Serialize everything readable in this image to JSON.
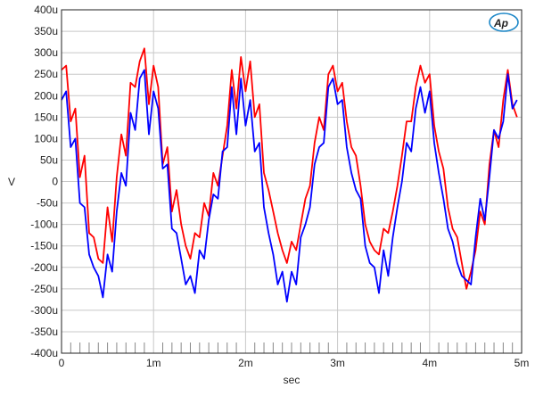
{
  "logo": {
    "text": "Ap",
    "color": "#1e88c8"
  },
  "chart_data": {
    "type": "line",
    "xlabel": "sec",
    "ylabel": "V",
    "xlim": [
      0,
      0.005
    ],
    "ylim": [
      -0.0004,
      0.0004
    ],
    "grid": true,
    "x_ticks": [
      {
        "value": 0,
        "label": "0"
      },
      {
        "value": 0.001,
        "label": "1m"
      },
      {
        "value": 0.002,
        "label": "2m"
      },
      {
        "value": 0.003,
        "label": "3m"
      },
      {
        "value": 0.004,
        "label": "4m"
      },
      {
        "value": 0.005,
        "label": "5m"
      }
    ],
    "y_ticks": [
      {
        "value": 0.0004,
        "label": "400u"
      },
      {
        "value": 0.00035,
        "label": "350u"
      },
      {
        "value": 0.0003,
        "label": "300u"
      },
      {
        "value": 0.00025,
        "label": "250u"
      },
      {
        "value": 0.0002,
        "label": "200u"
      },
      {
        "value": 0.00015,
        "label": "150u"
      },
      {
        "value": 0.0001,
        "label": "100u"
      },
      {
        "value": 5e-05,
        "label": "50u"
      },
      {
        "value": 0,
        "label": "0"
      },
      {
        "value": -5e-05,
        "label": "-50u"
      },
      {
        "value": -0.0001,
        "label": "-100u"
      },
      {
        "value": -0.00015,
        "label": "-150u"
      },
      {
        "value": -0.0002,
        "label": "-200u"
      },
      {
        "value": -0.00025,
        "label": "-250u"
      },
      {
        "value": -0.0003,
        "label": "-300u"
      },
      {
        "value": -0.00035,
        "label": "-350u"
      },
      {
        "value": -0.0004,
        "label": "-400u"
      }
    ],
    "series": [
      {
        "color": "#ff0000",
        "points": [
          [
            0,
            0.00026
          ],
          [
            5e-05,
            0.00027
          ],
          [
            0.0001,
            0.00014
          ],
          [
            0.00015,
            0.00017
          ],
          [
            0.0002,
            1e-05
          ],
          [
            0.00025,
            6e-05
          ],
          [
            0.0003,
            -0.00012
          ],
          [
            0.00035,
            -0.00013
          ],
          [
            0.0004,
            -0.00018
          ],
          [
            0.00045,
            -0.00019
          ],
          [
            0.0005,
            -6e-05
          ],
          [
            0.00055,
            -0.00014
          ],
          [
            0.0006,
            1e-05
          ],
          [
            0.00065,
            0.00011
          ],
          [
            0.0007,
            6e-05
          ],
          [
            0.00075,
            0.00023
          ],
          [
            0.0008,
            0.00022
          ],
          [
            0.00085,
            0.00028
          ],
          [
            0.0009,
            0.00031
          ],
          [
            0.00095,
            0.00018
          ],
          [
            0.001,
            0.00027
          ],
          [
            0.00105,
            0.00022
          ],
          [
            0.0011,
            4e-05
          ],
          [
            0.00115,
            8e-05
          ],
          [
            0.0012,
            -7e-05
          ],
          [
            0.00125,
            -2e-05
          ],
          [
            0.0013,
            -0.0001
          ],
          [
            0.00135,
            -0.00015
          ],
          [
            0.0014,
            -0.00018
          ],
          [
            0.00145,
            -0.00012
          ],
          [
            0.0015,
            -0.00013
          ],
          [
            0.00155,
            -5e-05
          ],
          [
            0.0016,
            -8e-05
          ],
          [
            0.00165,
            2e-05
          ],
          [
            0.0017,
            -1e-05
          ],
          [
            0.00175,
            6e-05
          ],
          [
            0.0018,
            0.00013
          ],
          [
            0.00185,
            0.00026
          ],
          [
            0.0019,
            0.00017
          ],
          [
            0.00195,
            0.00029
          ],
          [
            0.002,
            0.00021
          ],
          [
            0.00205,
            0.00028
          ],
          [
            0.0021,
            0.00015
          ],
          [
            0.00215,
            0.00018
          ],
          [
            0.0022,
            2e-05
          ],
          [
            0.00225,
            -2e-05
          ],
          [
            0.0023,
            -7e-05
          ],
          [
            0.00235,
            -0.00012
          ],
          [
            0.0024,
            -0.00016
          ],
          [
            0.00245,
            -0.00019
          ],
          [
            0.0025,
            -0.00014
          ],
          [
            0.00255,
            -0.00016
          ],
          [
            0.0026,
            -0.0001
          ],
          [
            0.00265,
            -4e-05
          ],
          [
            0.0027,
            -1e-05
          ],
          [
            0.00275,
            9e-05
          ],
          [
            0.0028,
            0.00015
          ],
          [
            0.00285,
            0.00012
          ],
          [
            0.0029,
            0.00025
          ],
          [
            0.00295,
            0.00027
          ],
          [
            0.003,
            0.00021
          ],
          [
            0.00305,
            0.00023
          ],
          [
            0.0031,
            0.00014
          ],
          [
            0.00315,
            8e-05
          ],
          [
            0.0032,
            6e-05
          ],
          [
            0.00325,
            -1e-05
          ],
          [
            0.0033,
            -0.0001
          ],
          [
            0.00335,
            -0.00014
          ],
          [
            0.0034,
            -0.00016
          ],
          [
            0.00345,
            -0.00017
          ],
          [
            0.0035,
            -0.00011
          ],
          [
            0.00355,
            -0.00012
          ],
          [
            0.0036,
            -7e-05
          ],
          [
            0.00365,
            -1e-05
          ],
          [
            0.0037,
            6e-05
          ],
          [
            0.00375,
            0.00014
          ],
          [
            0.0038,
            0.00014
          ],
          [
            0.00385,
            0.00022
          ],
          [
            0.0039,
            0.00027
          ],
          [
            0.00395,
            0.00023
          ],
          [
            0.004,
            0.00025
          ],
          [
            0.00405,
            0.00013
          ],
          [
            0.0041,
            7e-05
          ],
          [
            0.00415,
            3e-05
          ],
          [
            0.0042,
            -6e-05
          ],
          [
            0.00425,
            -0.00011
          ],
          [
            0.0043,
            -0.00013
          ],
          [
            0.00435,
            -0.00019
          ],
          [
            0.0044,
            -0.00025
          ],
          [
            0.00445,
            -0.00021
          ],
          [
            0.0045,
            -0.00016
          ],
          [
            0.00455,
            -7e-05
          ],
          [
            0.0046,
            -0.0001
          ],
          [
            0.00465,
            4e-05
          ],
          [
            0.0047,
            0.00012
          ],
          [
            0.00475,
            8e-05
          ],
          [
            0.0048,
            0.00019
          ],
          [
            0.00485,
            0.00026
          ],
          [
            0.0049,
            0.00018
          ],
          [
            0.00495,
            0.00015
          ]
        ]
      },
      {
        "color": "#0000ff",
        "points": [
          [
            0,
            0.00019
          ],
          [
            5e-05,
            0.00021
          ],
          [
            0.0001,
            8e-05
          ],
          [
            0.00015,
            0.0001
          ],
          [
            0.0002,
            -5e-05
          ],
          [
            0.00025,
            -6e-05
          ],
          [
            0.0003,
            -0.00017
          ],
          [
            0.00035,
            -0.0002
          ],
          [
            0.0004,
            -0.00022
          ],
          [
            0.00045,
            -0.00027
          ],
          [
            0.0005,
            -0.00017
          ],
          [
            0.00055,
            -0.00021
          ],
          [
            0.0006,
            -7e-05
          ],
          [
            0.00065,
            2e-05
          ],
          [
            0.0007,
            -1e-05
          ],
          [
            0.00075,
            0.00016
          ],
          [
            0.0008,
            0.00012
          ],
          [
            0.00085,
            0.00024
          ],
          [
            0.0009,
            0.00026
          ],
          [
            0.00095,
            0.00011
          ],
          [
            0.001,
            0.00021
          ],
          [
            0.00105,
            0.00017
          ],
          [
            0.0011,
            3e-05
          ],
          [
            0.00115,
            4e-05
          ],
          [
            0.0012,
            -0.00011
          ],
          [
            0.00125,
            -0.00012
          ],
          [
            0.0013,
            -0.00018
          ],
          [
            0.00135,
            -0.00024
          ],
          [
            0.0014,
            -0.00022
          ],
          [
            0.00145,
            -0.00026
          ],
          [
            0.0015,
            -0.00016
          ],
          [
            0.00155,
            -0.00018
          ],
          [
            0.0016,
            -9e-05
          ],
          [
            0.00165,
            -3e-05
          ],
          [
            0.0017,
            -4e-05
          ],
          [
            0.00175,
            7e-05
          ],
          [
            0.0018,
            8e-05
          ],
          [
            0.00185,
            0.00022
          ],
          [
            0.0019,
            0.00011
          ],
          [
            0.00195,
            0.00024
          ],
          [
            0.002,
            0.00013
          ],
          [
            0.00205,
            0.00019
          ],
          [
            0.0021,
            7e-05
          ],
          [
            0.00215,
            9e-05
          ],
          [
            0.0022,
            -6e-05
          ],
          [
            0.00225,
            -0.00012
          ],
          [
            0.0023,
            -0.00017
          ],
          [
            0.00235,
            -0.00024
          ],
          [
            0.0024,
            -0.00021
          ],
          [
            0.00245,
            -0.00028
          ],
          [
            0.0025,
            -0.00021
          ],
          [
            0.00255,
            -0.00024
          ],
          [
            0.0026,
            -0.00013
          ],
          [
            0.00265,
            -0.0001
          ],
          [
            0.0027,
            -6e-05
          ],
          [
            0.00275,
            4e-05
          ],
          [
            0.0028,
            8e-05
          ],
          [
            0.00285,
            9e-05
          ],
          [
            0.0029,
            0.00022
          ],
          [
            0.00295,
            0.00024
          ],
          [
            0.003,
            0.00018
          ],
          [
            0.00305,
            0.00019
          ],
          [
            0.0031,
            8e-05
          ],
          [
            0.00315,
            2e-05
          ],
          [
            0.0032,
            -2e-05
          ],
          [
            0.00325,
            -4e-05
          ],
          [
            0.0033,
            -0.00015
          ],
          [
            0.00335,
            -0.00019
          ],
          [
            0.0034,
            -0.0002
          ],
          [
            0.00345,
            -0.00026
          ],
          [
            0.0035,
            -0.00016
          ],
          [
            0.00355,
            -0.00022
          ],
          [
            0.0036,
            -0.00013
          ],
          [
            0.00365,
            -6e-05
          ],
          [
            0.0037,
            0.0
          ],
          [
            0.00375,
            9e-05
          ],
          [
            0.0038,
            7e-05
          ],
          [
            0.00385,
            0.00017
          ],
          [
            0.0039,
            0.00022
          ],
          [
            0.00395,
            0.00016
          ],
          [
            0.004,
            0.00021
          ],
          [
            0.00405,
            9e-05
          ],
          [
            0.0041,
            2e-05
          ],
          [
            0.00415,
            -4e-05
          ],
          [
            0.0042,
            -0.00011
          ],
          [
            0.00425,
            -0.00014
          ],
          [
            0.0043,
            -0.00019
          ],
          [
            0.00435,
            -0.00022
          ],
          [
            0.0044,
            -0.00023
          ],
          [
            0.00445,
            -0.00024
          ],
          [
            0.0045,
            -0.00013
          ],
          [
            0.00455,
            -4e-05
          ],
          [
            0.0046,
            -9e-05
          ],
          [
            0.00465,
            1e-05
          ],
          [
            0.0047,
            0.00012
          ],
          [
            0.00475,
            0.0001
          ],
          [
            0.0048,
            0.00014
          ],
          [
            0.00485,
            0.00025
          ],
          [
            0.0049,
            0.00017
          ],
          [
            0.00495,
            0.00019
          ]
        ]
      }
    ]
  }
}
